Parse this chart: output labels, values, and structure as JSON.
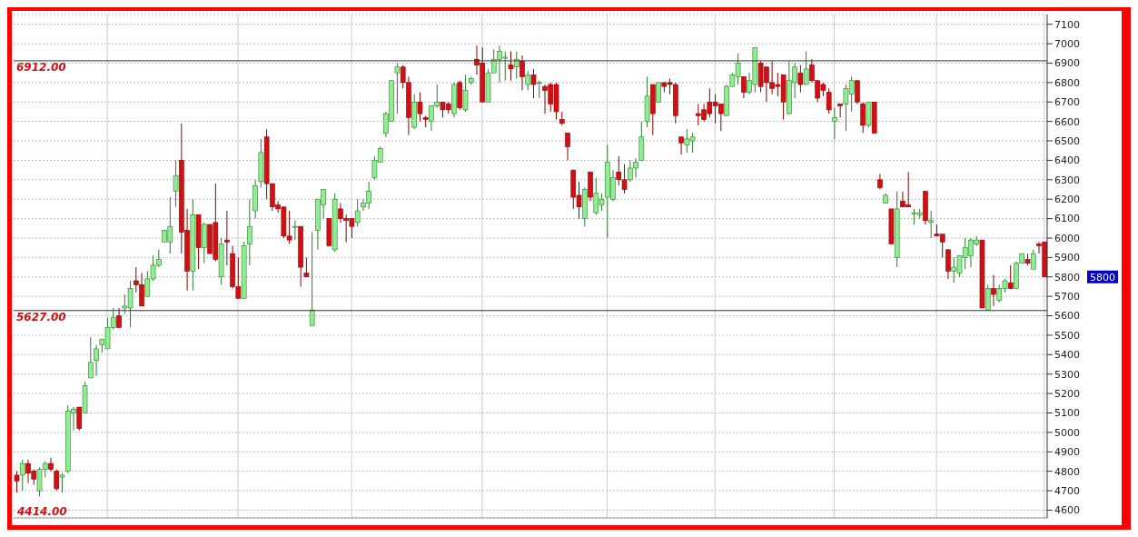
{
  "chart_data": {
    "type": "candlestick",
    "categories": [
      null,
      null,
      null,
      null,
      null,
      null,
      null,
      null,
      null,
      null,
      null,
      null,
      null,
      null,
      null,
      null,
      null,
      null,
      null,
      null,
      null,
      null,
      null,
      null,
      null,
      null,
      null,
      null,
      null,
      null,
      null,
      null,
      null,
      null,
      null,
      null,
      null,
      null,
      null,
      null,
      null,
      null,
      null,
      null,
      null,
      null,
      null,
      null,
      null,
      null,
      null,
      null,
      null,
      null,
      null,
      null,
      null,
      null,
      null,
      null,
      null,
      null,
      null,
      null,
      null,
      null,
      null,
      null,
      null,
      null,
      null,
      null,
      null,
      null,
      null,
      null,
      null,
      null,
      null,
      null,
      null,
      null,
      null,
      null,
      null,
      null,
      null,
      null,
      null,
      null,
      null,
      null,
      null,
      null,
      null,
      null,
      null,
      null,
      null,
      null,
      null,
      null,
      null,
      null,
      null,
      null,
      null,
      null,
      null,
      null,
      null,
      null,
      null,
      null,
      null,
      null,
      null,
      null,
      null,
      null,
      null,
      null,
      null,
      null,
      null,
      null,
      null,
      null,
      null,
      null,
      null,
      null,
      null,
      null,
      null,
      null,
      null,
      null,
      null,
      null,
      null,
      null,
      null,
      null,
      null,
      null,
      null,
      null,
      null,
      null,
      null,
      null,
      null,
      null,
      null,
      null,
      null,
      null,
      null,
      null,
      null,
      null,
      null,
      null,
      null,
      null,
      null,
      null,
      null,
      null,
      null,
      null,
      null,
      null,
      null,
      null,
      null,
      null,
      null,
      null,
      null,
      null
    ],
    "ohlc": [
      [
        4780,
        4800,
        4690,
        4750
      ],
      [
        4780,
        4860,
        4700,
        4840
      ],
      [
        4840,
        4860,
        4740,
        4790
      ],
      [
        4800,
        4810,
        4730,
        4760
      ],
      [
        4700,
        4820,
        4670,
        4810
      ],
      [
        4810,
        4850,
        4770,
        4840
      ],
      [
        4840,
        4870,
        4800,
        4810
      ],
      [
        4800,
        4810,
        4700,
        4710
      ],
      [
        4770,
        4790,
        4690,
        4780
      ],
      [
        4800,
        5140,
        4790,
        5110
      ],
      [
        5100,
        5130,
        5010,
        5120
      ],
      [
        5130,
        5130,
        5010,
        5020
      ],
      [
        5100,
        5260,
        5100,
        5240
      ],
      [
        5280,
        5490,
        5280,
        5360
      ],
      [
        5370,
        5450,
        5290,
        5430
      ],
      [
        5450,
        5480,
        5410,
        5480
      ],
      [
        5430,
        5590,
        5430,
        5540
      ],
      [
        5540,
        5640,
        5530,
        5590
      ],
      [
        5600,
        5640,
        5540,
        5540
      ],
      [
        5640,
        5710,
        5610,
        5650
      ],
      [
        5640,
        5780,
        5540,
        5740
      ],
      [
        5780,
        5850,
        5720,
        5760
      ],
      [
        5760,
        5820,
        5650,
        5650
      ],
      [
        5700,
        5830,
        5700,
        5790
      ],
      [
        5790,
        5910,
        5780,
        5860
      ],
      [
        5860,
        5940,
        5850,
        5890
      ],
      [
        5980,
        6040,
        5980,
        6040
      ],
      [
        5980,
        6210,
        5920,
        6060
      ],
      [
        6240,
        6400,
        6160,
        6320
      ],
      [
        6400,
        6590,
        5920,
        6030
      ],
      [
        6040,
        6150,
        5730,
        5830
      ],
      [
        5830,
        6200,
        5730,
        6120
      ],
      [
        6120,
        6120,
        5840,
        5950
      ],
      [
        5950,
        6080,
        5870,
        6070
      ],
      [
        6070,
        6070,
        5920,
        5920
      ],
      [
        6080,
        6280,
        5880,
        5890
      ],
      [
        5800,
        6000,
        5760,
        5970
      ],
      [
        5990,
        6140,
        5860,
        5980
      ],
      [
        5920,
        5960,
        5740,
        5750
      ],
      [
        5750,
        5900,
        5690,
        5690
      ],
      [
        5690,
        5980,
        5690,
        5960
      ],
      [
        5970,
        6200,
        5860,
        6060
      ],
      [
        6140,
        6300,
        6100,
        6270
      ],
      [
        6290,
        6510,
        6260,
        6440
      ],
      [
        6520,
        6560,
        6200,
        6280
      ],
      [
        6280,
        6280,
        6140,
        6160
      ],
      [
        6170,
        6190,
        6130,
        6150
      ],
      [
        6160,
        6160,
        6000,
        6010
      ],
      [
        6010,
        6140,
        5970,
        5990
      ],
      [
        6060,
        6090,
        5990,
        6060
      ],
      [
        6060,
        6060,
        5750,
        5850
      ],
      [
        5820,
        5900,
        5800,
        5800
      ],
      [
        5550,
        6030,
        5550,
        5630
      ],
      [
        6040,
        6200,
        5940,
        6200
      ],
      [
        6170,
        6250,
        6100,
        6250
      ],
      [
        6100,
        6100,
        5960,
        5960
      ],
      [
        5940,
        6230,
        5930,
        6200
      ],
      [
        6150,
        6180,
        6080,
        6100
      ],
      [
        6100,
        6120,
        5980,
        6090
      ],
      [
        6100,
        6100,
        6000,
        6060
      ],
      [
        6080,
        6200,
        6060,
        6140
      ],
      [
        6160,
        6200,
        6140,
        6180
      ],
      [
        6180,
        6290,
        6150,
        6240
      ],
      [
        6310,
        6420,
        6300,
        6400
      ],
      [
        6390,
        6470,
        6390,
        6460
      ],
      [
        6540,
        6650,
        6520,
        6640
      ],
      [
        6600,
        6810,
        6600,
        6810
      ],
      [
        6850,
        6900,
        6640,
        6880
      ],
      [
        6880,
        6890,
        6770,
        6800
      ],
      [
        6800,
        6830,
        6530,
        6620
      ],
      [
        6570,
        6740,
        6560,
        6700
      ],
      [
        6700,
        6750,
        6600,
        6640
      ],
      [
        6620,
        6630,
        6570,
        6610
      ],
      [
        6600,
        6680,
        6550,
        6680
      ],
      [
        6680,
        6790,
        6670,
        6700
      ],
      [
        6700,
        6700,
        6620,
        6660
      ],
      [
        6690,
        6700,
        6640,
        6660
      ],
      [
        6640,
        6800,
        6620,
        6790
      ],
      [
        6800,
        6810,
        6660,
        6670
      ],
      [
        6660,
        6840,
        6650,
        6760
      ],
      [
        6800,
        6830,
        6790,
        6820
      ],
      [
        6920,
        6990,
        6840,
        6890
      ],
      [
        6900,
        6980,
        6700,
        6700
      ],
      [
        6700,
        6870,
        6700,
        6850
      ],
      [
        6850,
        6970,
        6850,
        6920
      ],
      [
        6920,
        6990,
        6800,
        6960
      ],
      [
        6930,
        6960,
        6810,
        6930
      ],
      [
        6890,
        6960,
        6810,
        6870
      ],
      [
        6880,
        6960,
        6820,
        6920
      ],
      [
        6910,
        6940,
        6760,
        6830
      ],
      [
        6790,
        6860,
        6760,
        6840
      ],
      [
        6840,
        6870,
        6720,
        6790
      ],
      [
        6800,
        6810,
        6720,
        6800
      ],
      [
        6780,
        6790,
        6640,
        6760
      ],
      [
        6790,
        6800,
        6650,
        6690
      ],
      [
        6790,
        6800,
        6610,
        6650
      ],
      [
        6610,
        6650,
        6580,
        6590
      ],
      [
        6540,
        6540,
        6400,
        6470
      ],
      [
        6350,
        6350,
        6150,
        6210
      ],
      [
        6220,
        6290,
        6100,
        6160
      ],
      [
        6100,
        6260,
        6060,
        6250
      ],
      [
        6340,
        6340,
        6190,
        6210
      ],
      [
        6130,
        6310,
        6120,
        6230
      ],
      [
        6170,
        6230,
        6140,
        6200
      ],
      [
        6210,
        6480,
        6000,
        6390
      ],
      [
        6200,
        6350,
        6190,
        6310
      ],
      [
        6340,
        6420,
        6270,
        6300
      ],
      [
        6300,
        6380,
        6230,
        6250
      ],
      [
        6300,
        6400,
        6290,
        6360
      ],
      [
        6360,
        6410,
        6310,
        6390
      ],
      [
        6400,
        6600,
        6400,
        6520
      ],
      [
        6600,
        6830,
        6570,
        6730
      ],
      [
        6790,
        6790,
        6530,
        6640
      ],
      [
        6700,
        6800,
        6700,
        6800
      ],
      [
        6800,
        6800,
        6750,
        6780
      ],
      [
        6800,
        6820,
        6740,
        6790
      ],
      [
        6790,
        6800,
        6590,
        6630
      ],
      [
        6520,
        6520,
        6430,
        6490
      ],
      [
        6480,
        6560,
        6440,
        6510
      ],
      [
        6500,
        6540,
        6440,
        6520
      ],
      [
        6640,
        6690,
        6580,
        6630
      ],
      [
        6660,
        6690,
        6600,
        6610
      ],
      [
        6700,
        6770,
        6620,
        6640
      ],
      [
        6700,
        6740,
        6590,
        6680
      ],
      [
        6690,
        6690,
        6550,
        6640
      ],
      [
        6630,
        6790,
        6630,
        6780
      ],
      [
        6780,
        6850,
        6780,
        6840
      ],
      [
        6830,
        6950,
        6790,
        6900
      ],
      [
        6830,
        6830,
        6720,
        6750
      ],
      [
        6750,
        6850,
        6740,
        6810
      ],
      [
        6790,
        6980,
        6750,
        6980
      ],
      [
        6900,
        6910,
        6750,
        6780
      ],
      [
        6880,
        6880,
        6700,
        6800
      ],
      [
        6800,
        6910,
        6740,
        6770
      ],
      [
        6790,
        6850,
        6730,
        6780
      ],
      [
        6840,
        6840,
        6610,
        6700
      ],
      [
        6640,
        6910,
        6640,
        6810
      ],
      [
        6800,
        6900,
        6720,
        6880
      ],
      [
        6850,
        6890,
        6750,
        6790
      ],
      [
        6790,
        6960,
        6790,
        6870
      ],
      [
        6890,
        6920,
        6800,
        6810
      ],
      [
        6810,
        6810,
        6700,
        6720
      ],
      [
        6790,
        6800,
        6730,
        6760
      ],
      [
        6750,
        6770,
        6640,
        6660
      ],
      [
        6600,
        6670,
        6510,
        6620
      ],
      [
        6690,
        6690,
        6620,
        6680
      ],
      [
        6690,
        6790,
        6550,
        6770
      ],
      [
        6740,
        6830,
        6650,
        6810
      ],
      [
        6810,
        6810,
        6690,
        6700
      ],
      [
        6690,
        6700,
        6540,
        6580
      ],
      [
        6580,
        6700,
        6570,
        6700
      ],
      [
        6700,
        6700,
        6540,
        6540
      ],
      [
        6300,
        6330,
        6250,
        6260
      ],
      [
        6180,
        6230,
        6180,
        6220
      ],
      [
        6150,
        6150,
        5970,
        5970
      ],
      [
        5900,
        6240,
        5850,
        6150
      ],
      [
        6190,
        6240,
        6160,
        6160
      ],
      [
        6170,
        6340,
        6160,
        6160
      ],
      [
        6130,
        6150,
        6070,
        6130
      ],
      [
        6120,
        6150,
        6100,
        6130
      ],
      [
        6240,
        6240,
        6070,
        6090
      ],
      [
        6080,
        6140,
        6000,
        6090
      ],
      [
        6020,
        6070,
        6010,
        6010
      ],
      [
        6020,
        6020,
        5900,
        5980
      ],
      [
        5940,
        5940,
        5790,
        5830
      ],
      [
        5830,
        5900,
        5770,
        5850
      ],
      [
        5820,
        5910,
        5800,
        5910
      ],
      [
        5900,
        6000,
        5840,
        5950
      ],
      [
        5910,
        6000,
        5850,
        5990
      ],
      [
        5970,
        6010,
        5960,
        5990
      ],
      [
        5990,
        5990,
        5640,
        5640
      ],
      [
        5630,
        5760,
        5630,
        5740
      ],
      [
        5740,
        5810,
        5650,
        5710
      ],
      [
        5680,
        5760,
        5670,
        5740
      ],
      [
        5740,
        5790,
        5720,
        5780
      ],
      [
        5770,
        5860,
        5740,
        5740
      ],
      [
        5740,
        5880,
        5740,
        5870
      ],
      [
        5870,
        5920,
        5870,
        5920
      ],
      [
        5890,
        5920,
        5860,
        5870
      ],
      [
        5840,
        5940,
        5840,
        5920
      ],
      [
        5970,
        5980,
        5920,
        5960
      ],
      [
        5980,
        5980,
        5800,
        5800
      ]
    ],
    "ylim": [
      4560,
      7150
    ],
    "yticks": [
      4600,
      4700,
      4800,
      4900,
      5000,
      5100,
      5200,
      5300,
      5400,
      5500,
      5600,
      5700,
      5800,
      5900,
      6000,
      6100,
      6200,
      6300,
      6400,
      6500,
      6600,
      6700,
      6800,
      6900,
      7000,
      7100
    ],
    "grid": true,
    "ref_lines": [
      {
        "axis": "y",
        "value": 6912,
        "label": "6912.00",
        "color": "#333333"
      },
      {
        "axis": "y",
        "value": 5627,
        "label": "5627.00",
        "color": "#333333"
      }
    ],
    "annotations": [
      "4414.00",
      "5800"
    ]
  }
}
